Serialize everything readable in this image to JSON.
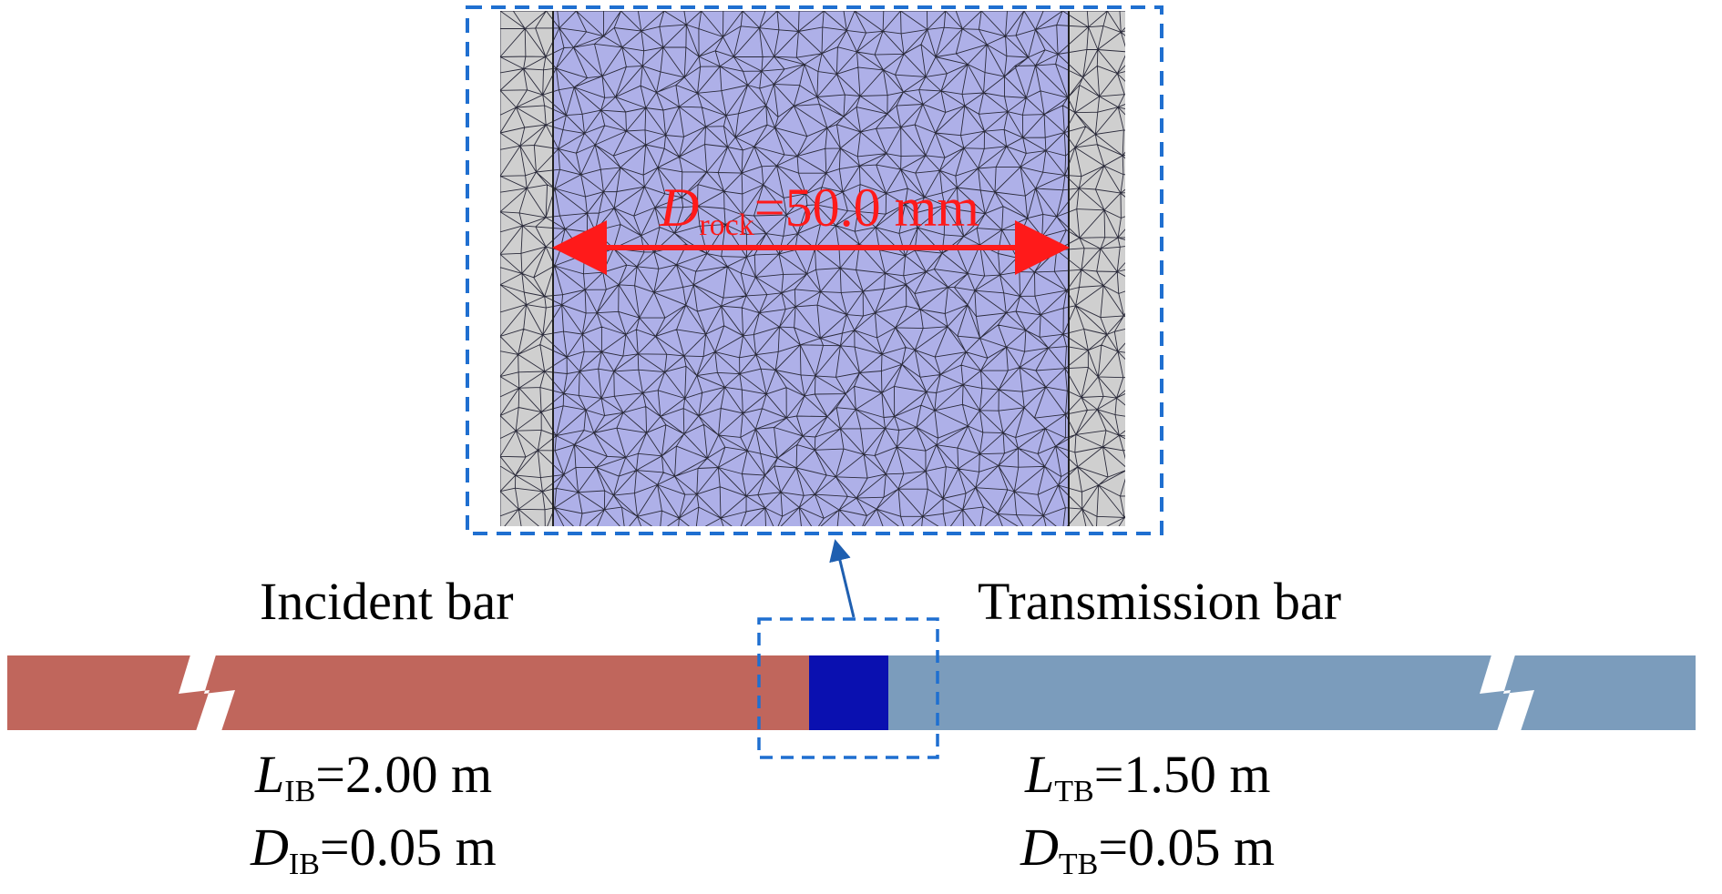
{
  "diagram": {
    "incident_bar": {
      "title": "Incident bar",
      "length_symbol": "L",
      "length_subscript": "IB",
      "length_value": "=2.00 m",
      "diameter_symbol": "D",
      "diameter_subscript": "IB",
      "diameter_value": "=0.05 m",
      "color": "#c0665c"
    },
    "transmission_bar": {
      "title": "Transmission bar",
      "length_symbol": "L",
      "length_subscript": "TB",
      "length_value": "=1.50 m",
      "diameter_symbol": "D",
      "diameter_subscript": "TB",
      "diameter_value": "=0.05 m",
      "color": "#7b9cbc"
    },
    "specimen": {
      "color": "#0a10b0"
    },
    "zoom_inset": {
      "mesh_color": "#aeb0e8",
      "end_cap_color": "#cfcfcf",
      "frame_color": "#1f6fd0",
      "dimension": {
        "symbol": "D",
        "subscript": "rock",
        "value": "=50.0 mm",
        "color": "#ff1a1a"
      }
    }
  }
}
